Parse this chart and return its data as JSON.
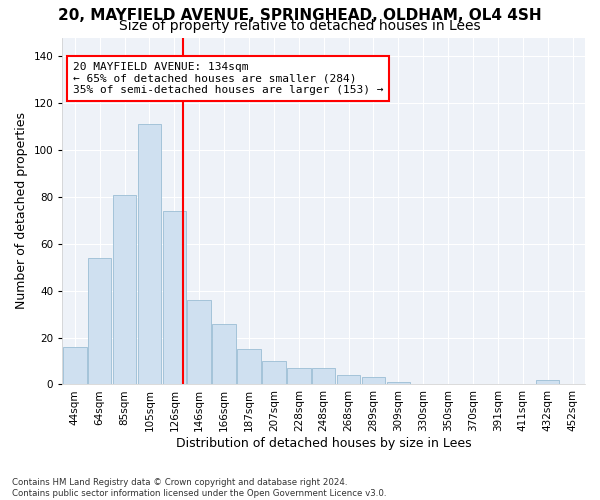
{
  "title_line1": "20, MAYFIELD AVENUE, SPRINGHEAD, OLDHAM, OL4 4SH",
  "title_line2": "Size of property relative to detached houses in Lees",
  "xlabel": "Distribution of detached houses by size in Lees",
  "ylabel": "Number of detached properties",
  "bar_color": "#cfe0f0",
  "bar_edge_color": "#9bbdd4",
  "background_color": "#eef2f8",
  "grid_color": "#ffffff",
  "annotation_text": "20 MAYFIELD AVENUE: 134sqm\n← 65% of detached houses are smaller (284)\n35% of semi-detached houses are larger (153) →",
  "annotation_box_color": "white",
  "annotation_border_color": "red",
  "vline_color": "red",
  "categories": [
    "44sqm",
    "64sqm",
    "85sqm",
    "105sqm",
    "126sqm",
    "146sqm",
    "166sqm",
    "187sqm",
    "207sqm",
    "228sqm",
    "248sqm",
    "268sqm",
    "289sqm",
    "309sqm",
    "330sqm",
    "350sqm",
    "370sqm",
    "391sqm",
    "411sqm",
    "432sqm",
    "452sqm"
  ],
  "values": [
    16,
    54,
    81,
    111,
    74,
    36,
    26,
    15,
    10,
    7,
    7,
    4,
    3,
    1,
    0,
    0,
    0,
    0,
    0,
    2,
    0
  ],
  "vline_bar_index": 4,
  "ylim": [
    0,
    148
  ],
  "yticks": [
    0,
    20,
    40,
    60,
    80,
    100,
    120,
    140
  ],
  "footnote": "Contains HM Land Registry data © Crown copyright and database right 2024.\nContains public sector information licensed under the Open Government Licence v3.0.",
  "title_fontsize": 11,
  "subtitle_fontsize": 10,
  "tick_fontsize": 7.5,
  "label_fontsize": 9
}
